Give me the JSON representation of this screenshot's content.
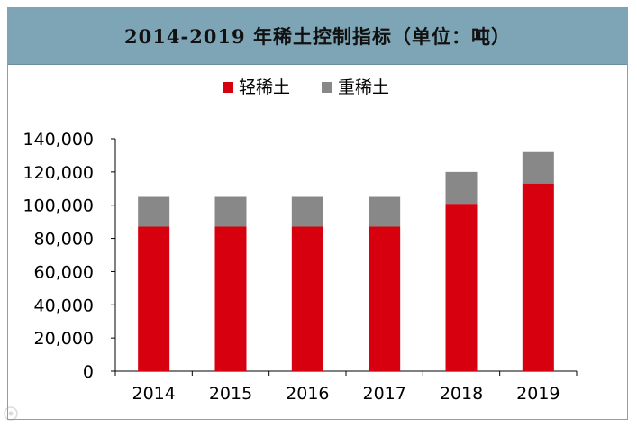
{
  "header": {
    "title": "2014-2019 年稀土控制指标（单位：吨）"
  },
  "colors": {
    "title_bar": "#7ea5b6",
    "light": "#d7000f",
    "heavy": "#888888",
    "axis": "#000000"
  },
  "chart_data": {
    "type": "bar",
    "stacked": true,
    "title": "2014-2019 年稀土控制指标（单位：吨）",
    "categories": [
      "2014",
      "2015",
      "2016",
      "2017",
      "2018",
      "2019"
    ],
    "series": [
      {
        "name": "轻稀土",
        "values": [
          87100,
          87100,
          87100,
          87100,
          100850,
          113050
        ]
      },
      {
        "name": "重稀土",
        "values": [
          17900,
          17900,
          17900,
          17900,
          19150,
          18950
        ]
      }
    ],
    "ylim": [
      0,
      140000
    ],
    "yticks": [
      "0",
      "20,000",
      "40,000",
      "60,000",
      "80,000",
      "100,000",
      "120,000",
      "140,000"
    ],
    "ytick_values": [
      0,
      20000,
      40000,
      60000,
      80000,
      100000,
      120000,
      140000
    ],
    "grid": false,
    "legend_position": "top-center"
  }
}
